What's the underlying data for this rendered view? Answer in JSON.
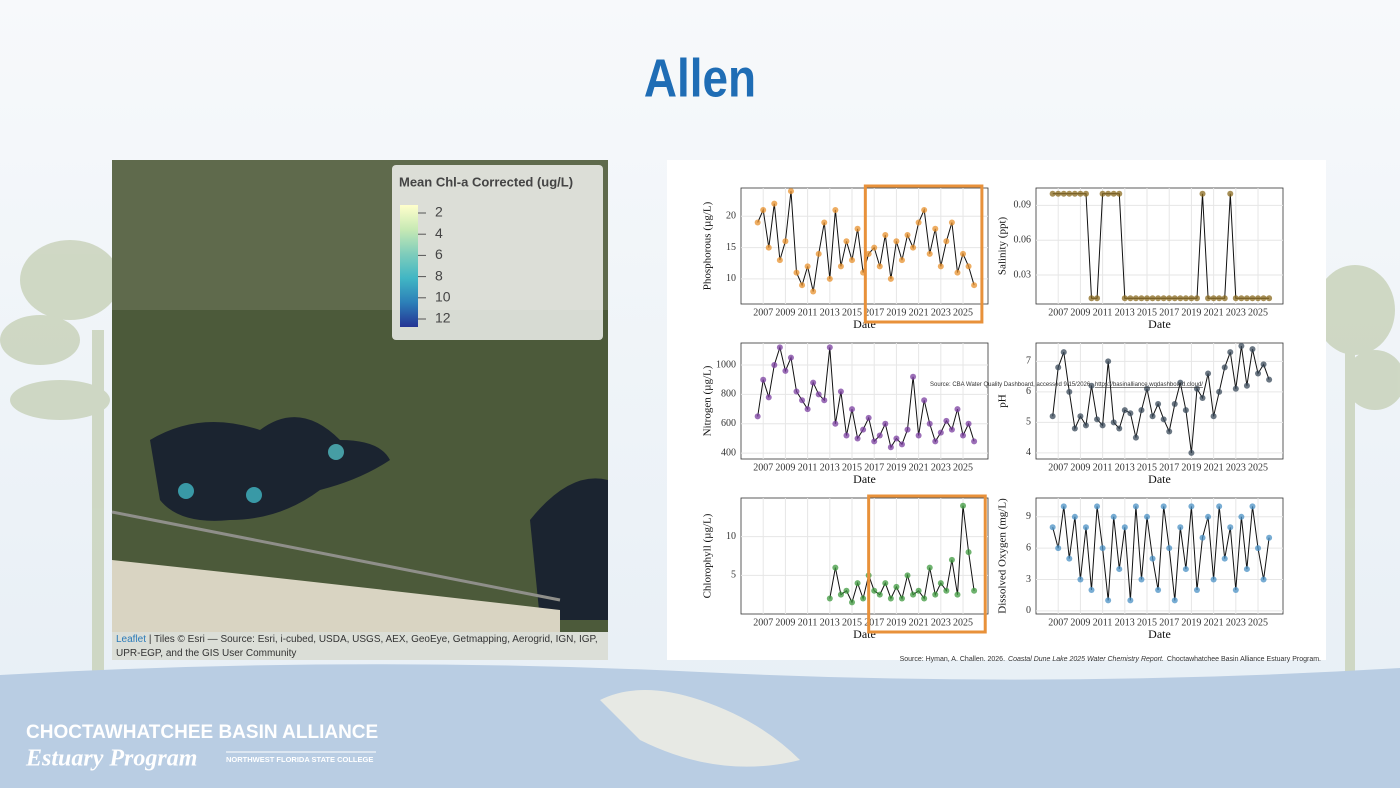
{
  "title": "Allen",
  "map": {
    "legend": {
      "title": "Mean Chl-a Corrected (ug/L)",
      "ticks": [
        2,
        4,
        6,
        8,
        10,
        12
      ],
      "colormap": [
        "#ffffcc",
        "#c7e9b4",
        "#7fcdbb",
        "#41b6c4",
        "#2c7fb8",
        "#253494"
      ]
    },
    "points": [
      {
        "value": 7.5
      },
      {
        "value": 8
      },
      {
        "value": 8
      }
    ],
    "attribution": {
      "link": "Leaflet",
      "text": "| Tiles © Esri — Source: Esri, i-cubed, USDA, USGS, AEX, GeoEye, Getmapping, Aerogrid, IGN, IGP,",
      "text2": "UPR-EGP, and the GIS User Community"
    }
  },
  "charts": [
    {
      "type": "line",
      "ylabel": "Phosphorous (µg/L)",
      "xlabel": "Date",
      "color": "#e8912e",
      "xlim": [
        2005,
        2027.25
      ],
      "xticks": [
        2007,
        2009,
        2011,
        2013,
        2015,
        2017,
        2019,
        2021,
        2023,
        2025
      ],
      "ylim": [
        6,
        24.5
      ],
      "yticks": [
        10,
        15,
        20
      ],
      "highlight_x": [
        2016.2,
        2026.7
      ],
      "x": [
        2006.5,
        2007,
        2007.5,
        2008,
        2008.5,
        2009,
        2009.5,
        2010,
        2010.5,
        2011,
        2011.5,
        2012,
        2012.5,
        2013,
        2013.5,
        2014,
        2014.5,
        2015,
        2015.5,
        2016,
        2016.5,
        2017,
        2017.5,
        2018,
        2018.5,
        2019,
        2019.5,
        2020,
        2020.5,
        2021,
        2021.5,
        2022,
        2022.5,
        2023,
        2023.5,
        2024,
        2024.5,
        2025,
        2025.5,
        2026
      ],
      "values": [
        19,
        21,
        15,
        22,
        13,
        16,
        24,
        11,
        9,
        12,
        8,
        14,
        19,
        10,
        21,
        12,
        16,
        13,
        18,
        11,
        14,
        15,
        12,
        17,
        10,
        16,
        13,
        17,
        15,
        19,
        21,
        14,
        18,
        12,
        16,
        19,
        11,
        14,
        12,
        9
      ]
    },
    {
      "type": "line",
      "ylabel": "Salinity (ppt)",
      "xlabel": "Date",
      "color": "#8a6a1e",
      "xlim": [
        2005,
        2027.25
      ],
      "xticks": [
        2007,
        2009,
        2011,
        2013,
        2015,
        2017,
        2019,
        2021,
        2023,
        2025
      ],
      "ylim": [
        0.005,
        0.105
      ],
      "yticks": [
        0.03,
        0.06,
        0.09
      ],
      "x": [
        2006.5,
        2007,
        2007.5,
        2008,
        2008.5,
        2009,
        2009.5,
        2010,
        2010.5,
        2011,
        2011.5,
        2012,
        2012.5,
        2013,
        2013.5,
        2014,
        2014.5,
        2015,
        2015.5,
        2016,
        2016.5,
        2017,
        2017.5,
        2018,
        2018.5,
        2019,
        2019.5,
        2020,
        2020.5,
        2021,
        2021.5,
        2022,
        2022.5,
        2023,
        2023.5,
        2024,
        2024.5,
        2025,
        2025.5,
        2026
      ],
      "values": [
        0.1,
        0.1,
        0.1,
        0.1,
        0.1,
        0.1,
        0.1,
        0.01,
        0.01,
        0.1,
        0.1,
        0.1,
        0.1,
        0.01,
        0.01,
        0.01,
        0.01,
        0.01,
        0.01,
        0.01,
        0.01,
        0.01,
        0.01,
        0.01,
        0.01,
        0.01,
        0.01,
        0.1,
        0.01,
        0.01,
        0.01,
        0.01,
        0.1,
        0.01,
        0.01,
        0.01,
        0.01,
        0.01,
        0.01,
        0.01
      ]
    },
    {
      "type": "line",
      "ylabel": "Nitrogen (µg/L)",
      "xlabel": "Date",
      "color": "#7b3fa0",
      "xlim": [
        2005,
        2027.25
      ],
      "xticks": [
        2007,
        2009,
        2011,
        2013,
        2015,
        2017,
        2019,
        2021,
        2023,
        2025
      ],
      "ylim": [
        360,
        1150
      ],
      "yticks": [
        400,
        600,
        800,
        1000
      ],
      "x": [
        2006.5,
        2007,
        2007.5,
        2008,
        2008.5,
        2009,
        2009.5,
        2010,
        2010.5,
        2011,
        2011.5,
        2012,
        2012.5,
        2013,
        2013.5,
        2014,
        2014.5,
        2015,
        2015.5,
        2016,
        2016.5,
        2017,
        2017.5,
        2018,
        2018.5,
        2019,
        2019.5,
        2020,
        2020.5,
        2021,
        2021.5,
        2022,
        2022.5,
        2023,
        2023.5,
        2024,
        2024.5,
        2025,
        2025.5,
        2026
      ],
      "values": [
        650,
        900,
        780,
        1000,
        1120,
        960,
        1050,
        820,
        760,
        700,
        880,
        800,
        760,
        1120,
        600,
        820,
        520,
        700,
        500,
        560,
        640,
        480,
        520,
        600,
        440,
        500,
        460,
        560,
        920,
        520,
        760,
        600,
        480,
        540,
        620,
        560,
        700,
        520,
        600,
        480
      ]
    },
    {
      "type": "line",
      "ylabel": "pH",
      "xlabel": "Date",
      "color": "#3a4a5a",
      "xlim": [
        2005,
        2027.25
      ],
      "xticks": [
        2007,
        2009,
        2011,
        2013,
        2015,
        2017,
        2019,
        2021,
        2023,
        2025
      ],
      "ylim": [
        3.8,
        7.6
      ],
      "yticks": [
        4,
        5,
        6,
        7
      ],
      "x": [
        2006.5,
        2007,
        2007.5,
        2008,
        2008.5,
        2009,
        2009.5,
        2010,
        2010.5,
        2011,
        2011.5,
        2012,
        2012.5,
        2013,
        2013.5,
        2014,
        2014.5,
        2015,
        2015.5,
        2016,
        2016.5,
        2017,
        2017.5,
        2018,
        2018.5,
        2019,
        2019.5,
        2020,
        2020.5,
        2021,
        2021.5,
        2022,
        2022.5,
        2023,
        2023.5,
        2024,
        2024.5,
        2025,
        2025.5,
        2026
      ],
      "values": [
        5.2,
        6.8,
        7.3,
        6.0,
        4.8,
        5.2,
        4.9,
        6.2,
        5.1,
        4.9,
        7.0,
        5.0,
        4.8,
        5.4,
        5.3,
        4.5,
        5.4,
        6.1,
        5.2,
        5.6,
        5.1,
        4.7,
        5.6,
        6.3,
        5.4,
        4.0,
        6.1,
        5.8,
        6.6,
        5.2,
        6.0,
        6.8,
        7.3,
        6.1,
        7.5,
        6.2,
        7.4,
        6.6,
        6.9,
        6.4
      ]
    },
    {
      "type": "line",
      "ylabel": "Chlorophyll (µg/L)",
      "xlabel": "Date",
      "color": "#3f9a3f",
      "xlim": [
        2005,
        2027.25
      ],
      "xticks": [
        2007,
        2009,
        2011,
        2013,
        2015,
        2017,
        2019,
        2021,
        2023,
        2025
      ],
      "ylim": [
        0,
        15
      ],
      "yticks": [
        5,
        10
      ],
      "highlight_x": [
        2016.5,
        2027
      ],
      "x": [
        2013,
        2013.5,
        2014,
        2014.5,
        2015,
        2015.5,
        2016,
        2016.5,
        2017,
        2017.5,
        2018,
        2018.5,
        2019,
        2019.5,
        2020,
        2020.5,
        2021,
        2021.5,
        2022,
        2022.5,
        2023,
        2023.5,
        2024,
        2024.5,
        2025,
        2025.5,
        2026
      ],
      "values": [
        2,
        6,
        2.5,
        3,
        1.5,
        4,
        2,
        5,
        3,
        2.5,
        4,
        2,
        3.5,
        2,
        5,
        2.5,
        3,
        2,
        6,
        2.5,
        4,
        3,
        7,
        2.5,
        14,
        8,
        3
      ]
    },
    {
      "type": "line",
      "ylabel": "Dissolved Oxygen (mg/L)",
      "xlabel": "Date",
      "color": "#4a90c4",
      "xlim": [
        2005,
        2027.25
      ],
      "xticks": [
        2007,
        2009,
        2011,
        2013,
        2015,
        2017,
        2019,
        2021,
        2023,
        2025
      ],
      "ylim": [
        -0.3,
        10.8
      ],
      "yticks": [
        0,
        3,
        6,
        9
      ],
      "x": [
        2006.5,
        2007,
        2007.5,
        2008,
        2008.5,
        2009,
        2009.5,
        2010,
        2010.5,
        2011,
        2011.5,
        2012,
        2012.5,
        2013,
        2013.5,
        2014,
        2014.5,
        2015,
        2015.5,
        2016,
        2016.5,
        2017,
        2017.5,
        2018,
        2018.5,
        2019,
        2019.5,
        2020,
        2020.5,
        2021,
        2021.5,
        2022,
        2022.5,
        2023,
        2023.5,
        2024,
        2024.5,
        2025,
        2025.5,
        2026
      ],
      "values": [
        8,
        6,
        10,
        5,
        9,
        3,
        8,
        2,
        10,
        6,
        1,
        9,
        4,
        8,
        1,
        10,
        3,
        9,
        5,
        2,
        10,
        6,
        1,
        8,
        4,
        10,
        2,
        7,
        9,
        3,
        10,
        5,
        8,
        2,
        9,
        4,
        10,
        6,
        3,
        7
      ]
    }
  ],
  "dashboard_note": {
    "text": "Source: CBA Water Quality Dashboard, accessed 9/15/2026.",
    "link": "https://basinalliance.wqdashboard.cloud/"
  },
  "citation": {
    "prefix": "Source: Hyman, A. Challen. 2026.",
    "report": "Coastal Dune Lake 2025 Water Chemistry Report.",
    "suffix": "Choctawhatchee Basin Alliance Estuary Program."
  },
  "logo": {
    "name": "CHOCTAWHATCHEE BASIN ALLIANCE",
    "program": "Estuary Program",
    "college": "NORTHWEST FLORIDA STATE COLLEGE"
  }
}
